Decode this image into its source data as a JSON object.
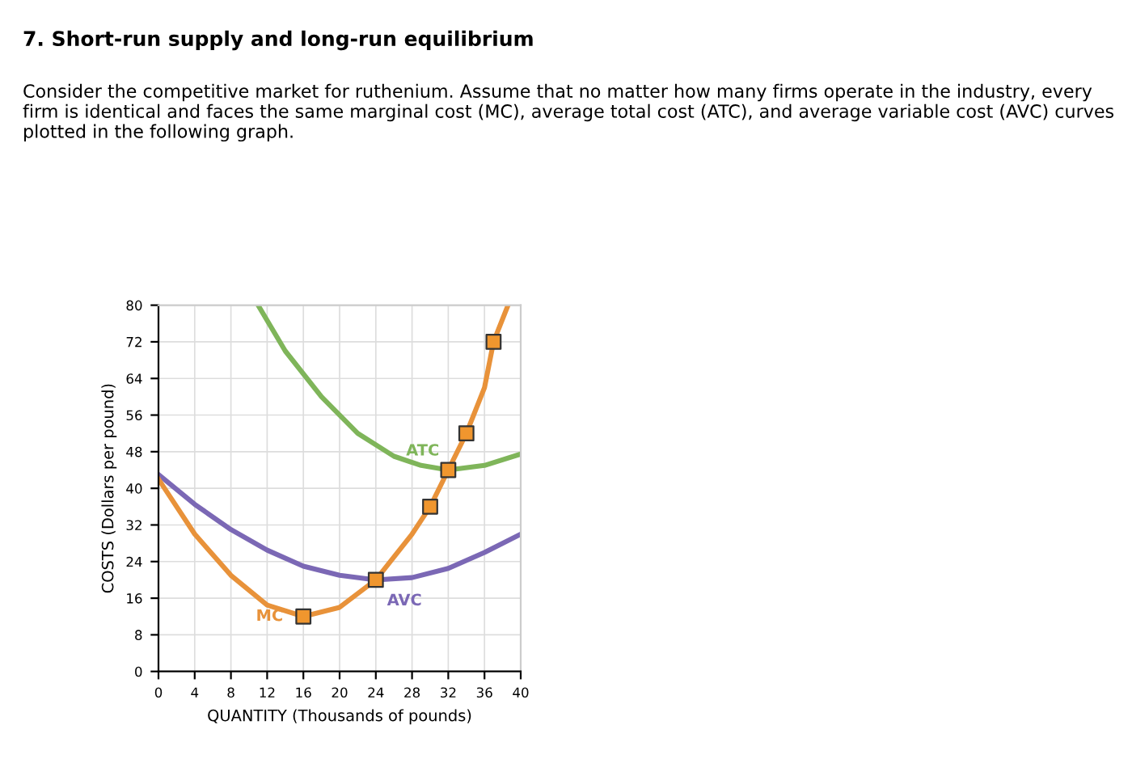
{
  "chart_data": {
    "type": "line",
    "title": "7. Short-run supply and long-run equilibrium",
    "subtitle": "Consider the competitive market for ruthenium. Assume that no matter how many firms operate in the industry, every firm is identical and faces the same marginal cost (MC), average total cost (ATC), and average variable cost (AVC) curves plotted in the following graph.",
    "xlabel": "QUANTITY (Thousands of pounds)",
    "ylabel": "COSTS (Dollars per pound)",
    "xlim": [
      0,
      40
    ],
    "ylim": [
      0,
      80
    ],
    "xticks": [
      0,
      4,
      8,
      12,
      16,
      20,
      24,
      28,
      32,
      36,
      40
    ],
    "yticks": [
      0,
      8,
      16,
      24,
      32,
      40,
      48,
      56,
      64,
      72,
      80
    ],
    "grid": true,
    "legend": false,
    "line_style": "solid",
    "series": [
      {
        "name": "ATC",
        "color": "#7fb55a",
        "x": [
          11,
          14,
          18,
          22,
          26,
          29,
          32,
          36,
          40
        ],
        "values": [
          80,
          70,
          60,
          52,
          47,
          45,
          44,
          45,
          47.5
        ]
      },
      {
        "name": "AVC",
        "color": "#7b68b5",
        "x": [
          0,
          4,
          8,
          12,
          16,
          20,
          24,
          28,
          32,
          36,
          40
        ],
        "values": [
          43,
          36.5,
          31,
          26.5,
          23,
          21,
          20,
          20.5,
          22.5,
          26,
          30
        ]
      },
      {
        "name": "MC",
        "color": "#e8923a",
        "x": [
          0,
          4,
          8,
          12,
          16,
          20,
          24,
          28,
          30,
          32,
          34,
          36,
          37,
          38.6
        ],
        "values": [
          42,
          30,
          21,
          14.5,
          12,
          14,
          20,
          30,
          36,
          44,
          52,
          62,
          72,
          80
        ]
      },
      {
        "type": "scatter",
        "marker": "square",
        "color": "#f0962e",
        "x": [
          16,
          24,
          30,
          32,
          34,
          37
        ],
        "values": [
          12,
          20,
          36,
          44,
          52,
          72
        ]
      }
    ]
  }
}
